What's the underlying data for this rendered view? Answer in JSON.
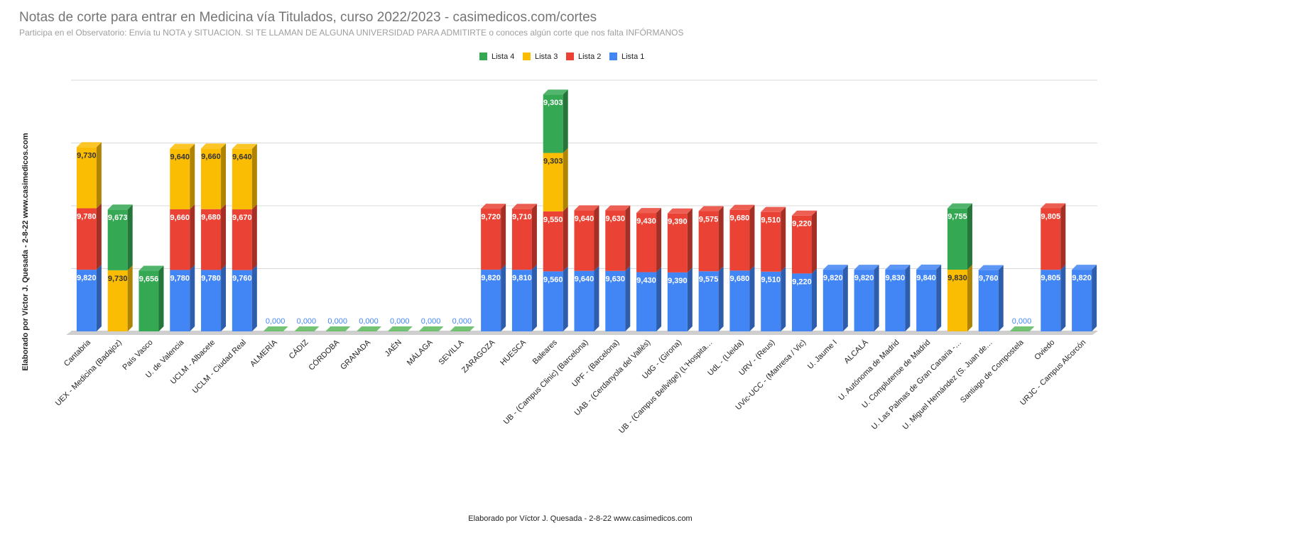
{
  "chart_data": {
    "type": "stacked-bar-3d",
    "title": "Notas de corte para entrar en Medicina vía Titulados, curso 2022/2023 - casimedicos.com/cortes",
    "subtitle": "Participa en el Observatorio: Envía tu NOTA y SITUACION. SI TE LLAMAN DE ALGUNA UNIVERSIDAD PARA ADMITIRTE o conoces algún corte que nos falta INFÓRMANOS",
    "y_label": "Elaborado por Víctor J. Quesada - 2-8-22  www.casimedicos.com",
    "x_label": "Elaborado por Víctor J. Quesada - 2-8-22  www.casimedicos.com",
    "categories": [
      "Cantabria",
      "UEX - Medicina (Badajoz)",
      "País Vasco",
      "U. de Valencia",
      "UCLM - Albacete",
      "UCLM - Ciudad Real",
      "ALMERÍA",
      "CÁDIZ",
      "CÓRDOBA",
      "GRANADA",
      "JAÉN",
      "MÁLAGA",
      "SEVILLA",
      "ZARAGOZA",
      "HUESCA",
      "Baleares",
      "UB - (Campus Clinic) (Barcelona)",
      "UPF - (Barcelona)",
      "UAB - (Cerdanyola del Vallès)",
      "UdG - (Girona)",
      "UB - (Campus Bellvitge) (L'Hospita…",
      "UdL - (Lleida)",
      "URV - (Reus)",
      "UVic-UCC - (Manresa / Vic)",
      "U. Jaume I",
      "ALCALÁ",
      "U. Autónoma de Madrid",
      "U. Complutense de Madrid",
      "U. Las Palmas de Gran Canaria -…",
      "U. Miguel Hernández (S. Juan de…",
      "Santiago de Compostela",
      "Oviedo",
      "URJC - Campus Alcorcón"
    ],
    "series": [
      {
        "name": "Lista 1",
        "color": "#4285f4",
        "label_color": "#ffffff",
        "zero_label_color": "#4285f4",
        "values": [
          9.82,
          null,
          null,
          9.78,
          9.78,
          9.76,
          0,
          0,
          0,
          0,
          0,
          0,
          0,
          9.82,
          9.81,
          9.56,
          9.64,
          9.63,
          9.43,
          9.39,
          9.575,
          9.68,
          9.51,
          9.22,
          9.82,
          9.82,
          9.83,
          9.84,
          null,
          9.76,
          0,
          9.805,
          9.82
        ],
        "value_labels": [
          "9,820",
          null,
          null,
          "9,780",
          "9,780",
          "9,760",
          "0,000",
          "0,000",
          "0,000",
          "0,000",
          "0,000",
          "0,000",
          "0,000",
          "9,820",
          "9,810",
          "9,560",
          "9,640",
          "9,630",
          "9,430",
          "9,390",
          "9,575",
          "9,680",
          "9,510",
          "9,220",
          "9,820",
          "9,820",
          "9,830",
          "9,840",
          null,
          "9,760",
          "0,000",
          "9,805",
          "9,820"
        ]
      },
      {
        "name": "Lista 2",
        "color": "#ea4335",
        "label_color": "#ffffff",
        "values": [
          9.78,
          null,
          null,
          9.66,
          9.68,
          9.67,
          null,
          null,
          null,
          null,
          null,
          null,
          null,
          9.72,
          9.71,
          9.55,
          9.64,
          9.63,
          9.43,
          9.39,
          9.575,
          9.68,
          9.51,
          9.22,
          null,
          null,
          null,
          null,
          null,
          null,
          null,
          9.805,
          null
        ],
        "value_labels": [
          "9,780",
          null,
          null,
          "9,660",
          "9,680",
          "9,670",
          null,
          null,
          null,
          null,
          null,
          null,
          null,
          "9,720",
          "9,710",
          "9,550",
          "9,640",
          "9,630",
          "9,430",
          "9,390",
          "9,575",
          "9,680",
          "9,510",
          "9,220",
          null,
          null,
          null,
          null,
          null,
          null,
          null,
          "9,805",
          null
        ]
      },
      {
        "name": "Lista 3",
        "color": "#fbbc04",
        "label_color": "#333333",
        "values": [
          9.73,
          9.73,
          null,
          9.64,
          9.66,
          9.64,
          null,
          null,
          null,
          null,
          null,
          null,
          null,
          null,
          null,
          9.303,
          null,
          null,
          null,
          null,
          null,
          null,
          null,
          null,
          null,
          null,
          null,
          null,
          9.83,
          null,
          null,
          null,
          null
        ],
        "value_labels": [
          "9,730",
          "9,730",
          null,
          "9,640",
          "9,660",
          "9,640",
          null,
          null,
          null,
          null,
          null,
          null,
          null,
          null,
          null,
          "9,303",
          null,
          null,
          null,
          null,
          null,
          null,
          null,
          null,
          null,
          null,
          null,
          null,
          "9,830",
          null,
          null,
          null,
          null
        ]
      },
      {
        "name": "Lista 4",
        "color": "#34a853",
        "label_color": "#ffffff",
        "values": [
          null,
          9.673,
          9.656,
          null,
          null,
          null,
          null,
          null,
          null,
          null,
          null,
          null,
          null,
          null,
          null,
          9.303,
          null,
          null,
          null,
          null,
          null,
          null,
          null,
          null,
          null,
          null,
          null,
          null,
          9.755,
          null,
          null,
          null,
          null
        ],
        "value_labels": [
          null,
          "9,673",
          "9,656",
          null,
          null,
          null,
          null,
          null,
          null,
          null,
          null,
          null,
          null,
          null,
          null,
          "9,303",
          null,
          null,
          null,
          null,
          null,
          null,
          null,
          null,
          null,
          null,
          null,
          null,
          "9,755",
          null,
          null,
          null,
          null
        ]
      }
    ],
    "ylim": [
      0,
      40
    ],
    "yticks": [
      0,
      10,
      20,
      30,
      40
    ],
    "ytick_labels": false,
    "grid": true,
    "legend": "top"
  }
}
